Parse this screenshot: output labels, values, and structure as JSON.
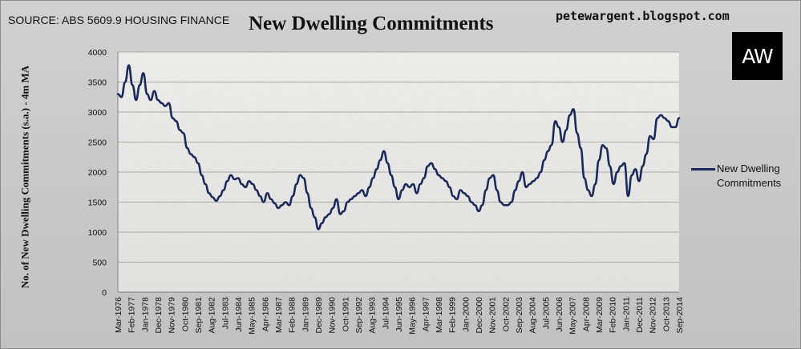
{
  "header": {
    "source": "SOURCE: ABS 5609.9 HOUSING FINANCE",
    "blog": "petewargent.blogspot.com",
    "logo_text": "AW"
  },
  "chart_data": {
    "type": "line",
    "title": "New Dwelling Commitments",
    "ylabel": "No. of New Dwelling Commitments (s.a.) - 4m MA",
    "xlabel": "",
    "ylim": [
      0,
      4000
    ],
    "yticks": [
      0,
      500,
      1000,
      1500,
      2000,
      2500,
      3000,
      3500,
      4000
    ],
    "grid": "horizontal",
    "legend": "right",
    "line_color": "#1b2a5a",
    "x_start": "Mar-1976",
    "x_end": "Sep-2014",
    "xtick_labels": [
      "Mar-1976",
      "Feb-1977",
      "Jan-1978",
      "Dec-1978",
      "Nov-1979",
      "Oct-1980",
      "Sep-1981",
      "Aug-1982",
      "Jul-1983",
      "Jun-1984",
      "May-1985",
      "Apr-1986",
      "Mar-1987",
      "Feb-1988",
      "Jan-1989",
      "Dec-1989",
      "Nov-1990",
      "Oct-1991",
      "Sep-1992",
      "Aug-1993",
      "Jul-1994",
      "Jun-1995",
      "May-1996",
      "Apr-1997",
      "Mar-1998",
      "Feb-1999",
      "Jan-2000",
      "Dec-2000",
      "Nov-2001",
      "Oct-2002",
      "Sep-2003",
      "Aug-2004",
      "Jul-2005",
      "Jun-2006",
      "May-2007",
      "Apr-2008",
      "Mar-2009",
      "Feb-2010",
      "Jan-2011",
      "Dec-2011",
      "Nov-2012",
      "Oct-2013",
      "Sep-2014"
    ],
    "series": [
      {
        "name": "New Dwelling Commitments",
        "points": [
          [
            "Mar-1976",
            3300
          ],
          [
            "Jun-1976",
            3250
          ],
          [
            "Sep-1976",
            3500
          ],
          [
            "Dec-1976",
            3780
          ],
          [
            "Mar-1977",
            3450
          ],
          [
            "Jun-1977",
            3200
          ],
          [
            "Sep-1977",
            3450
          ],
          [
            "Dec-1977",
            3650
          ],
          [
            "Mar-1978",
            3300
          ],
          [
            "Jun-1978",
            3200
          ],
          [
            "Sep-1978",
            3350
          ],
          [
            "Dec-1978",
            3200
          ],
          [
            "Mar-1979",
            3150
          ],
          [
            "Jun-1979",
            3100
          ],
          [
            "Sep-1979",
            3150
          ],
          [
            "Dec-1979",
            2900
          ],
          [
            "Mar-1980",
            2850
          ],
          [
            "Jun-1980",
            2700
          ],
          [
            "Sep-1980",
            2650
          ],
          [
            "Dec-1980",
            2400
          ],
          [
            "Mar-1981",
            2300
          ],
          [
            "Jun-1981",
            2250
          ],
          [
            "Sep-1981",
            2150
          ],
          [
            "Dec-1981",
            1950
          ],
          [
            "Mar-1982",
            1800
          ],
          [
            "Jun-1982",
            1650
          ],
          [
            "Sep-1982",
            1580
          ],
          [
            "Dec-1982",
            1520
          ],
          [
            "Mar-1983",
            1600
          ],
          [
            "Jun-1983",
            1700
          ],
          [
            "Sep-1983",
            1850
          ],
          [
            "Dec-1983",
            1950
          ],
          [
            "Mar-1984",
            1880
          ],
          [
            "Jun-1984",
            1900
          ],
          [
            "Sep-1984",
            1800
          ],
          [
            "Dec-1984",
            1750
          ],
          [
            "Mar-1985",
            1850
          ],
          [
            "Jun-1985",
            1800
          ],
          [
            "Sep-1985",
            1700
          ],
          [
            "Dec-1985",
            1600
          ],
          [
            "Mar-1986",
            1500
          ],
          [
            "Jun-1986",
            1650
          ],
          [
            "Sep-1986",
            1550
          ],
          [
            "Dec-1986",
            1480
          ],
          [
            "Mar-1987",
            1400
          ],
          [
            "Jun-1987",
            1450
          ],
          [
            "Sep-1987",
            1500
          ],
          [
            "Dec-1987",
            1450
          ],
          [
            "Mar-1988",
            1600
          ],
          [
            "Jun-1988",
            1800
          ],
          [
            "Sep-1988",
            1950
          ],
          [
            "Dec-1988",
            1900
          ],
          [
            "Mar-1989",
            1650
          ],
          [
            "Jun-1989",
            1400
          ],
          [
            "Sep-1989",
            1250
          ],
          [
            "Dec-1989",
            1050
          ],
          [
            "Mar-1990",
            1150
          ],
          [
            "Jun-1990",
            1250
          ],
          [
            "Sep-1990",
            1300
          ],
          [
            "Dec-1990",
            1400
          ],
          [
            "Mar-1991",
            1550
          ],
          [
            "Jun-1991",
            1300
          ],
          [
            "Sep-1991",
            1350
          ],
          [
            "Dec-1991",
            1500
          ],
          [
            "Mar-1992",
            1550
          ],
          [
            "Jun-1992",
            1600
          ],
          [
            "Sep-1992",
            1650
          ],
          [
            "Dec-1992",
            1700
          ],
          [
            "Mar-1993",
            1600
          ],
          [
            "Jun-1993",
            1750
          ],
          [
            "Sep-1993",
            1900
          ],
          [
            "Dec-1993",
            2050
          ],
          [
            "Mar-1994",
            2200
          ],
          [
            "Jun-1994",
            2350
          ],
          [
            "Sep-1994",
            2150
          ],
          [
            "Dec-1994",
            1950
          ],
          [
            "Mar-1995",
            1750
          ],
          [
            "Jun-1995",
            1550
          ],
          [
            "Sep-1995",
            1700
          ],
          [
            "Dec-1995",
            1800
          ],
          [
            "Mar-1996",
            1750
          ],
          [
            "Jun-1996",
            1800
          ],
          [
            "Sep-1996",
            1650
          ],
          [
            "Dec-1996",
            1800
          ],
          [
            "Mar-1997",
            1900
          ],
          [
            "Jun-1997",
            2100
          ],
          [
            "Sep-1997",
            2150
          ],
          [
            "Dec-1997",
            2050
          ],
          [
            "Mar-1998",
            1950
          ],
          [
            "Jun-1998",
            1900
          ],
          [
            "Sep-1998",
            1850
          ],
          [
            "Dec-1998",
            1750
          ],
          [
            "Mar-1999",
            1600
          ],
          [
            "Jun-1999",
            1550
          ],
          [
            "Sep-1999",
            1700
          ],
          [
            "Dec-1999",
            1650
          ],
          [
            "Mar-2000",
            1600
          ],
          [
            "Jun-2000",
            1500
          ],
          [
            "Sep-2000",
            1450
          ],
          [
            "Dec-2000",
            1350
          ],
          [
            "Mar-2001",
            1450
          ],
          [
            "Jun-2001",
            1700
          ],
          [
            "Sep-2001",
            1900
          ],
          [
            "Dec-2001",
            1950
          ],
          [
            "Mar-2002",
            1700
          ],
          [
            "Jun-2002",
            1500
          ],
          [
            "Sep-2002",
            1450
          ],
          [
            "Dec-2002",
            1450
          ],
          [
            "Mar-2003",
            1500
          ],
          [
            "Jun-2003",
            1700
          ],
          [
            "Sep-2003",
            1850
          ],
          [
            "Dec-2003",
            2000
          ],
          [
            "Mar-2004",
            1750
          ],
          [
            "Jun-2004",
            1800
          ],
          [
            "Sep-2004",
            1850
          ],
          [
            "Dec-2004",
            1900
          ],
          [
            "Mar-2005",
            2000
          ],
          [
            "Jun-2005",
            2200
          ],
          [
            "Sep-2005",
            2350
          ],
          [
            "Dec-2005",
            2450
          ],
          [
            "Mar-2006",
            2850
          ],
          [
            "Jun-2006",
            2750
          ],
          [
            "Sep-2006",
            2500
          ],
          [
            "Dec-2006",
            2700
          ],
          [
            "Mar-2007",
            2950
          ],
          [
            "Jun-2007",
            3050
          ],
          [
            "Sep-2007",
            2650
          ],
          [
            "Dec-2007",
            2400
          ],
          [
            "Mar-2008",
            1900
          ],
          [
            "Jun-2008",
            1700
          ],
          [
            "Sep-2008",
            1600
          ],
          [
            "Dec-2008",
            1800
          ],
          [
            "Mar-2009",
            2200
          ],
          [
            "Jun-2009",
            2450
          ],
          [
            "Sep-2009",
            2400
          ],
          [
            "Dec-2009",
            2100
          ],
          [
            "Mar-2010",
            1800
          ],
          [
            "Jun-2010",
            2000
          ],
          [
            "Sep-2010",
            2100
          ],
          [
            "Dec-2010",
            2150
          ],
          [
            "Mar-2011",
            1600
          ],
          [
            "Jun-2011",
            1950
          ],
          [
            "Sep-2011",
            2050
          ],
          [
            "Dec-2011",
            1850
          ],
          [
            "Mar-2012",
            2100
          ],
          [
            "Jun-2012",
            2300
          ],
          [
            "Sep-2012",
            2600
          ],
          [
            "Dec-2012",
            2550
          ],
          [
            "Mar-2013",
            2900
          ],
          [
            "Jun-2013",
            2950
          ],
          [
            "Sep-2013",
            2900
          ],
          [
            "Dec-2013",
            2850
          ],
          [
            "Mar-2014",
            2750
          ],
          [
            "Jun-2014",
            2750
          ],
          [
            "Sep-2014",
            2900
          ]
        ]
      }
    ]
  }
}
